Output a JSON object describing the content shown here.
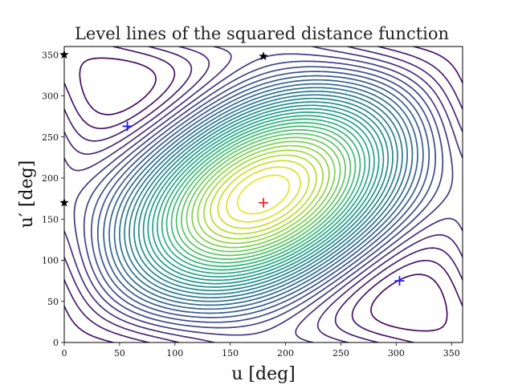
{
  "chart_data": {
    "type": "contour",
    "title": "Level lines of the squared distance function",
    "xlabel": "u [deg]",
    "ylabel": "u′ [deg]",
    "xlim": [
      0,
      360
    ],
    "ylim": [
      0,
      360
    ],
    "xticks": [
      0,
      50,
      100,
      150,
      200,
      250,
      300,
      350
    ],
    "yticks": [
      0,
      50,
      100,
      150,
      200,
      250,
      300,
      350
    ],
    "grid": false,
    "colormap": "viridis",
    "markers": [
      {
        "kind": "minimum",
        "symbol": "+",
        "color": "#1f1fff",
        "u": 57,
        "u_prime": 263
      },
      {
        "kind": "minimum",
        "symbol": "+",
        "color": "#1f1fff",
        "u": 303,
        "u_prime": 75
      },
      {
        "kind": "maximum",
        "symbol": "+",
        "color": "#ff1f1f",
        "u": 180,
        "u_prime": 170
      },
      {
        "kind": "saddle",
        "symbol": "star",
        "color": "#000000",
        "u": 180,
        "u_prime": 348
      },
      {
        "kind": "saddle",
        "symbol": "star",
        "color": "#000000",
        "u": 0,
        "u_prime": 350
      },
      {
        "kind": "saddle",
        "symbol": "star",
        "color": "#000000",
        "u": 0,
        "u_prime": 170
      }
    ]
  }
}
